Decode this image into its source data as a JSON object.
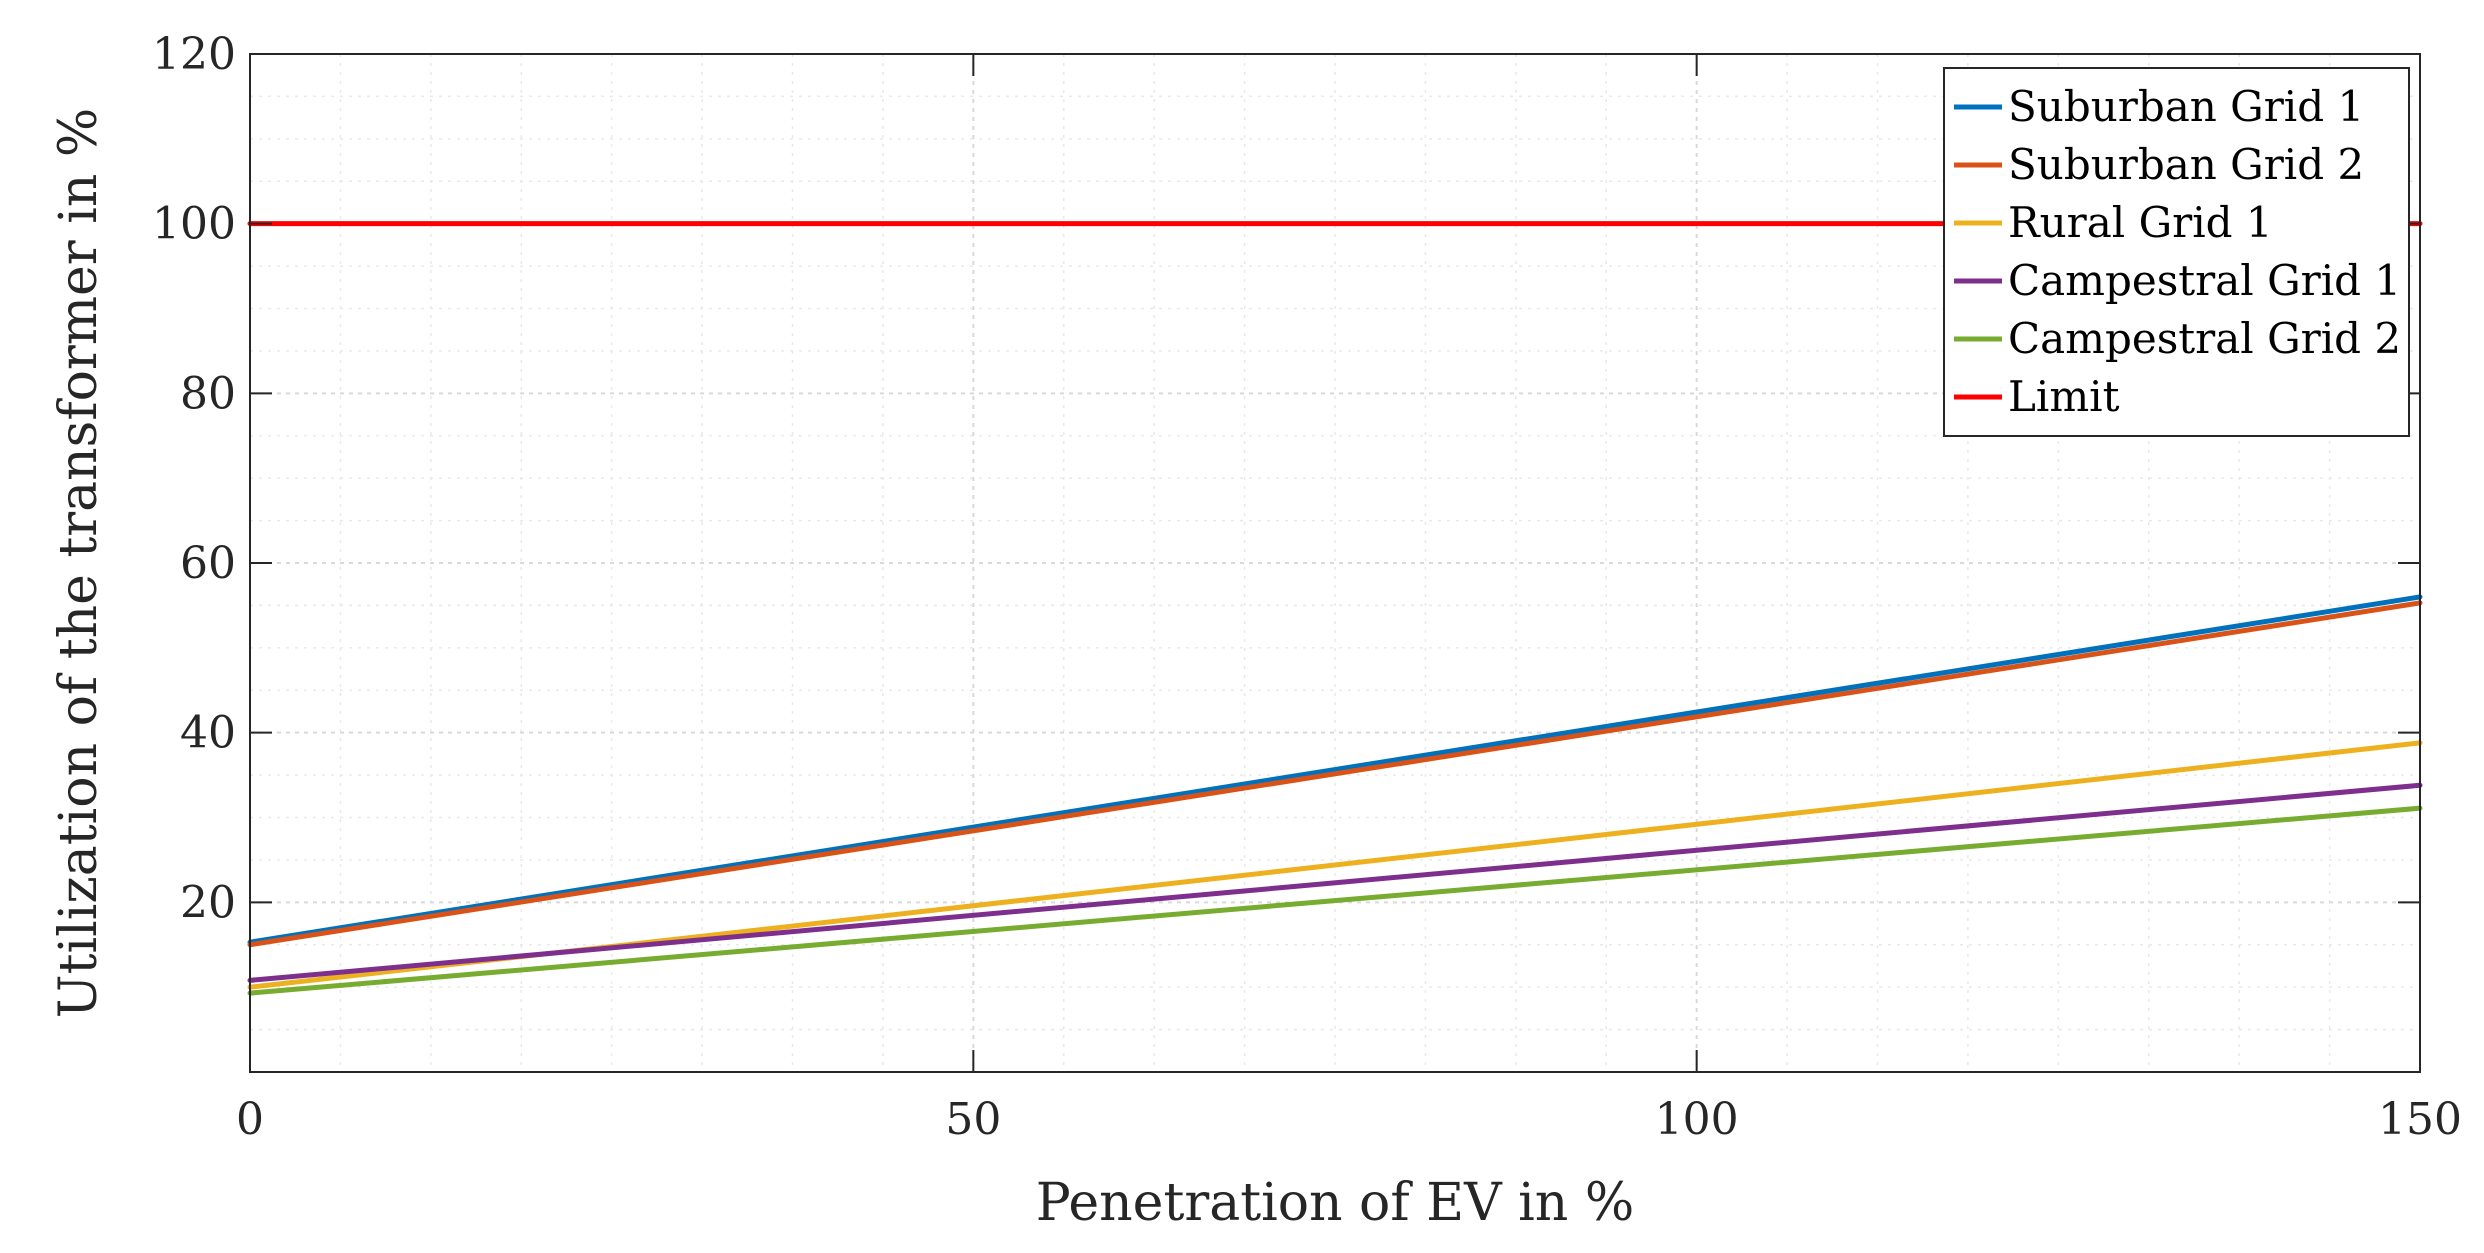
{
  "chart_data": {
    "type": "line",
    "title": "",
    "xlabel": "Penetration of EV in %",
    "ylabel": "Utilization of the transformer in %",
    "xlim": [
      0,
      150
    ],
    "ylim": [
      0,
      120
    ],
    "xticks": [
      0,
      50,
      100,
      150
    ],
    "yticks": [
      20,
      40,
      60,
      80,
      100,
      120
    ],
    "x_minor_step": 6.25,
    "y_minor_step": 5,
    "grid": true,
    "legend_position": "top-right",
    "series": [
      {
        "name": "Suburban Grid 1",
        "color": "#0072BD",
        "x": [
          0,
          150
        ],
        "y": [
          15.3,
          56.0
        ]
      },
      {
        "name": "Suburban Grid 2",
        "color": "#D95319",
        "x": [
          0,
          150
        ],
        "y": [
          15.0,
          55.3
        ]
      },
      {
        "name": "Rural Grid 1",
        "color": "#EDB120",
        "x": [
          0,
          150
        ],
        "y": [
          10.0,
          38.8
        ]
      },
      {
        "name": "Campestral Grid 1",
        "color": "#7E2F8E",
        "x": [
          0,
          150
        ],
        "y": [
          10.8,
          33.8
        ]
      },
      {
        "name": "Campestral Grid 2",
        "color": "#77AC30",
        "x": [
          0,
          150
        ],
        "y": [
          9.3,
          31.1
        ]
      },
      {
        "name": "Limit",
        "color": "#FF0000",
        "x": [
          0,
          150
        ],
        "y": [
          100,
          100
        ]
      }
    ]
  }
}
